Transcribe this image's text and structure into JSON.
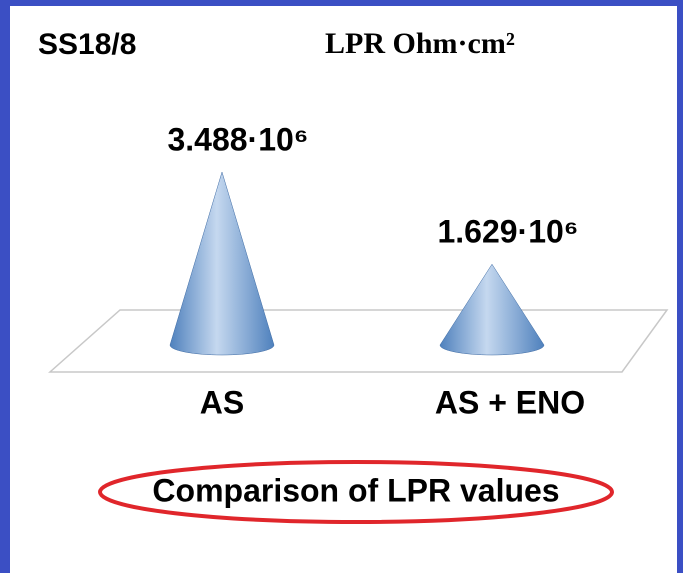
{
  "chart_data": {
    "type": "cone",
    "title": "SS18/8",
    "subtitle": "LPR Ohm·cm²",
    "caption": "Comparison of LPR values",
    "categories": [
      "AS",
      "AS + ENO"
    ],
    "values": [
      3488000,
      1629000
    ],
    "value_labels": [
      "3.488·10⁶",
      "1.629·10⁶"
    ],
    "color": "#4f81bd"
  }
}
